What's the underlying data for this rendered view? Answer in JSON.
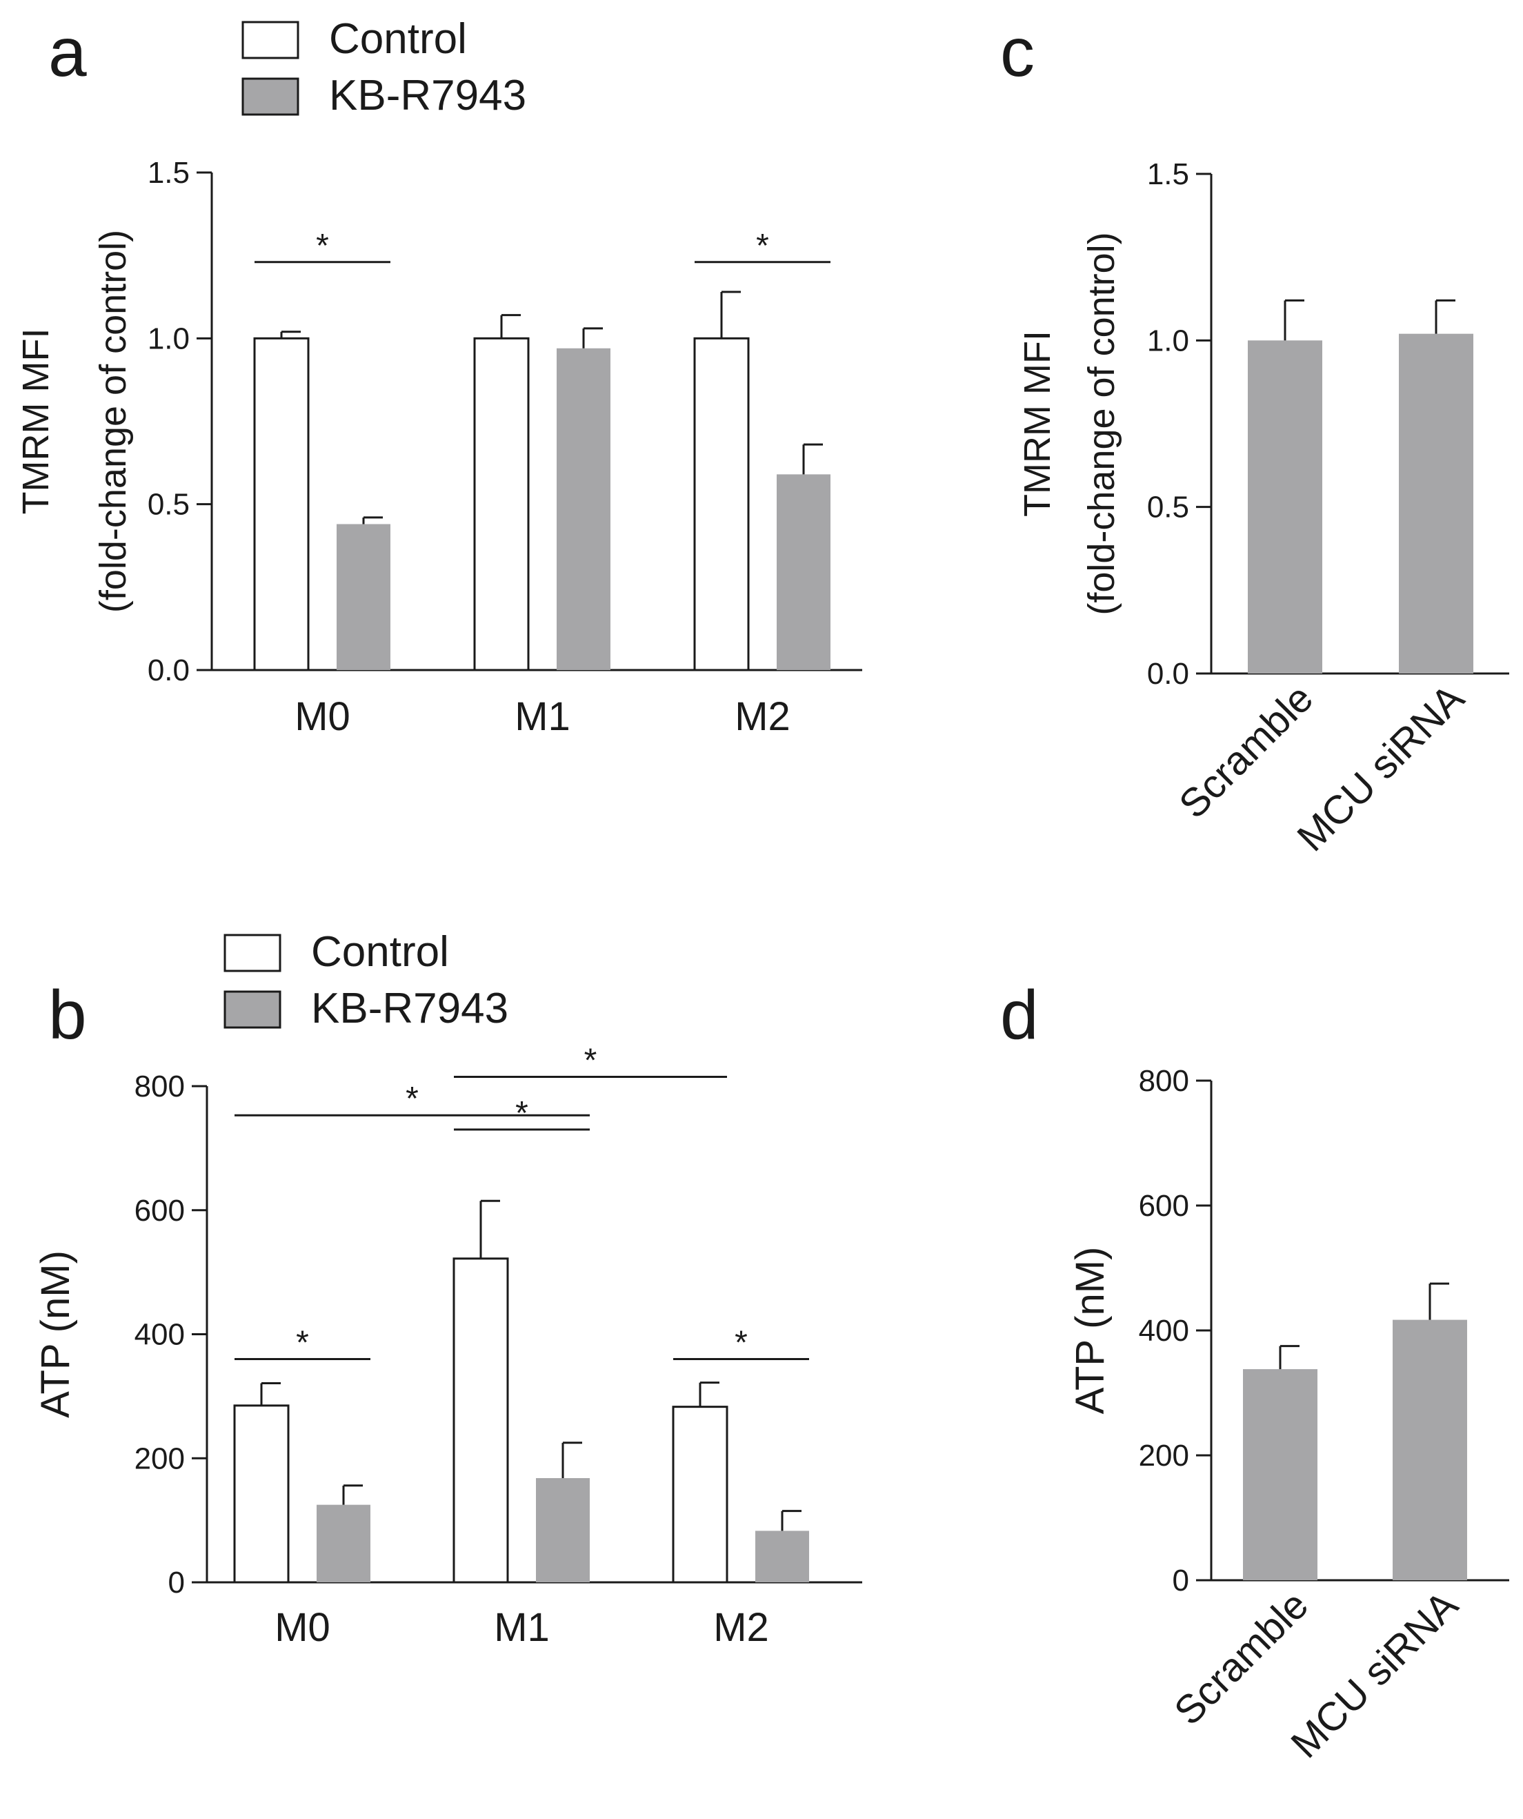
{
  "colors": {
    "control": "#ffffff",
    "treated": "#a6a6a8",
    "stroke": "#1a1a1a"
  },
  "chart_data": [
    {
      "panel": "a",
      "type": "bar",
      "ylabel_line1": "TMRM MFI",
      "ylabel_line2": "(fold-change of control)",
      "ylim": [
        0,
        1.5
      ],
      "yticks": [
        0,
        0.5,
        1.0,
        1.5
      ],
      "ytick_labels": [
        "0.0",
        "0.5",
        "1.0",
        "1.5"
      ],
      "categories": [
        "M0",
        "M1",
        "M2"
      ],
      "legend": {
        "placement": "top-left",
        "entries": [
          "Control",
          "KB-R7943"
        ]
      },
      "series": [
        {
          "name": "Control",
          "values": [
            1.0,
            1.0,
            1.0
          ],
          "errors": [
            0.02,
            0.07,
            0.14
          ]
        },
        {
          "name": "KB-R7943",
          "values": [
            0.44,
            0.97,
            0.59
          ],
          "errors": [
            0.02,
            0.06,
            0.09
          ]
        }
      ],
      "significance": [
        {
          "label": "*",
          "from": "M0:Control",
          "to": "M0:KB-R7943",
          "level": 1.23
        },
        {
          "label": "*",
          "from": "M2:Control",
          "to": "M2:KB-R7943",
          "level": 1.23
        }
      ]
    },
    {
      "panel": "b",
      "type": "bar",
      "ylabel_line1": "ATP (nM)",
      "ylabel_line2": "",
      "ylim": [
        0,
        800
      ],
      "yticks": [
        0,
        200,
        400,
        600,
        800
      ],
      "ytick_labels": [
        "0",
        "200",
        "400",
        "600",
        "800"
      ],
      "categories": [
        "M0",
        "M1",
        "M2"
      ],
      "legend": {
        "placement": "top-left",
        "entries": [
          "Control",
          "KB-R7943"
        ]
      },
      "series": [
        {
          "name": "Control",
          "values": [
            285,
            522,
            283
          ],
          "errors": [
            36,
            93,
            39
          ]
        },
        {
          "name": "KB-R7943",
          "values": [
            125,
            168,
            83
          ],
          "errors": [
            31,
            57,
            32
          ]
        }
      ],
      "significance": [
        {
          "label": "*",
          "from": "M0:Control",
          "to": "M0:KB-R7943",
          "level": 360
        },
        {
          "label": "*",
          "from": "M1:Control",
          "to": "M1:KB-R7943",
          "level": 730
        },
        {
          "label": "*",
          "from": "M0:Control",
          "to": "M1:KB-R7943",
          "level": 753
        },
        {
          "label": "*",
          "from": "M1:Control",
          "to": "M2:Control",
          "level": 815
        },
        {
          "label": "*",
          "from": "M2:Control",
          "to": "M2:KB-R7943",
          "level": 360
        }
      ]
    },
    {
      "panel": "c",
      "type": "bar",
      "ylabel_line1": "TMRM MFI",
      "ylabel_line2": "(fold-change of control)",
      "ylim": [
        0,
        1.5
      ],
      "yticks": [
        0,
        0.5,
        1.0,
        1.5
      ],
      "ytick_labels": [
        "0.0",
        "0.5",
        "1.0",
        "1.5"
      ],
      "categories": [
        "Scramble",
        "MCU siRNA"
      ],
      "series": [
        {
          "name": "TMRM",
          "values": [
            1.0,
            1.02
          ],
          "errors": [
            0.12,
            0.1
          ]
        }
      ]
    },
    {
      "panel": "d",
      "type": "bar",
      "ylabel_line1": "ATP (nM)",
      "ylabel_line2": "",
      "ylim": [
        0,
        800
      ],
      "yticks": [
        0,
        200,
        400,
        600,
        800
      ],
      "ytick_labels": [
        "0",
        "200",
        "400",
        "600",
        "800"
      ],
      "categories": [
        "Scramble",
        "MCU siRNA"
      ],
      "series": [
        {
          "name": "ATP",
          "values": [
            338,
            417
          ],
          "errors": [
            37,
            58
          ]
        }
      ]
    }
  ]
}
